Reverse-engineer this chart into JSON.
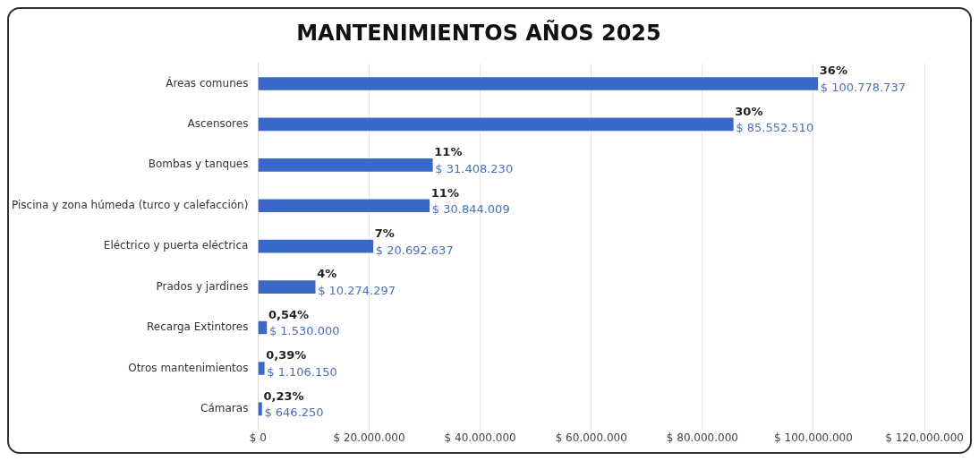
{
  "chart_data": {
    "type": "bar",
    "title": "MANTENIMIENTOS AÑOS 2025",
    "orientation": "horizontal",
    "categories": [
      "Áreas comunes",
      "Ascensores",
      "Bombas y tanques",
      "Piscina y zona húmeda (turco y calefacción)",
      "Eléctrico y puerta eléctrica",
      "Prados y jardines",
      "Recarga Extintores",
      "Otros mantenimientos",
      "Cámaras"
    ],
    "series": [
      {
        "color": "#3a68c8",
        "values": [
          100778737,
          85552510,
          31408230,
          30844009,
          20692637,
          10274297,
          1530000,
          1106150,
          646250
        ],
        "value_labels": [
          "$ 100.778.737",
          "$ 85.552.510",
          "$ 31.408.230",
          "$ 30.844.009",
          "$ 20.692.637",
          "$ 10.274.297",
          "$ 1.530.000",
          "$ 1.106.150",
          "$ 646.250"
        ]
      }
    ],
    "annotations": [
      {
        "text": "36%",
        "x": 100778737,
        "y": "Áreas comunes"
      },
      {
        "text": "30%",
        "x": 85552510,
        "y": "Ascensores"
      },
      {
        "text": "11%",
        "x": 31408230,
        "y": "Bombas y tanques"
      },
      {
        "text": "11%",
        "x": 30844009,
        "y": "Piscina y zona húmeda (turco y calefacción)"
      },
      {
        "text": "7%",
        "x": 20692637,
        "y": "Eléctrico y puerta eléctrica"
      },
      {
        "text": "4%",
        "x": 10274297,
        "y": "Prados y jardines"
      },
      {
        "text": "0,54%",
        "x": 1530000,
        "y": "Recarga Extintores"
      },
      {
        "text": "0,39%",
        "x": 1106150,
        "y": "Otros mantenimientos"
      },
      {
        "text": "0,23%",
        "x": 646250,
        "y": "Cámaras"
      }
    ],
    "xlim": [
      0,
      120000000
    ],
    "xticks": [
      {
        "value": 0,
        "label": "$ 0"
      },
      {
        "value": 20000000,
        "label": "$ 20.000.000"
      },
      {
        "value": 40000000,
        "label": "$ 40.000.000"
      },
      {
        "value": 60000000,
        "label": "$ 60.000.000"
      },
      {
        "value": 80000000,
        "label": "$ 80.000.000"
      },
      {
        "value": 100000000,
        "label": "$ 100.000.000"
      },
      {
        "value": 120000000,
        "label": "$ 120.000.000"
      }
    ],
    "grid": "x",
    "legend": false
  }
}
